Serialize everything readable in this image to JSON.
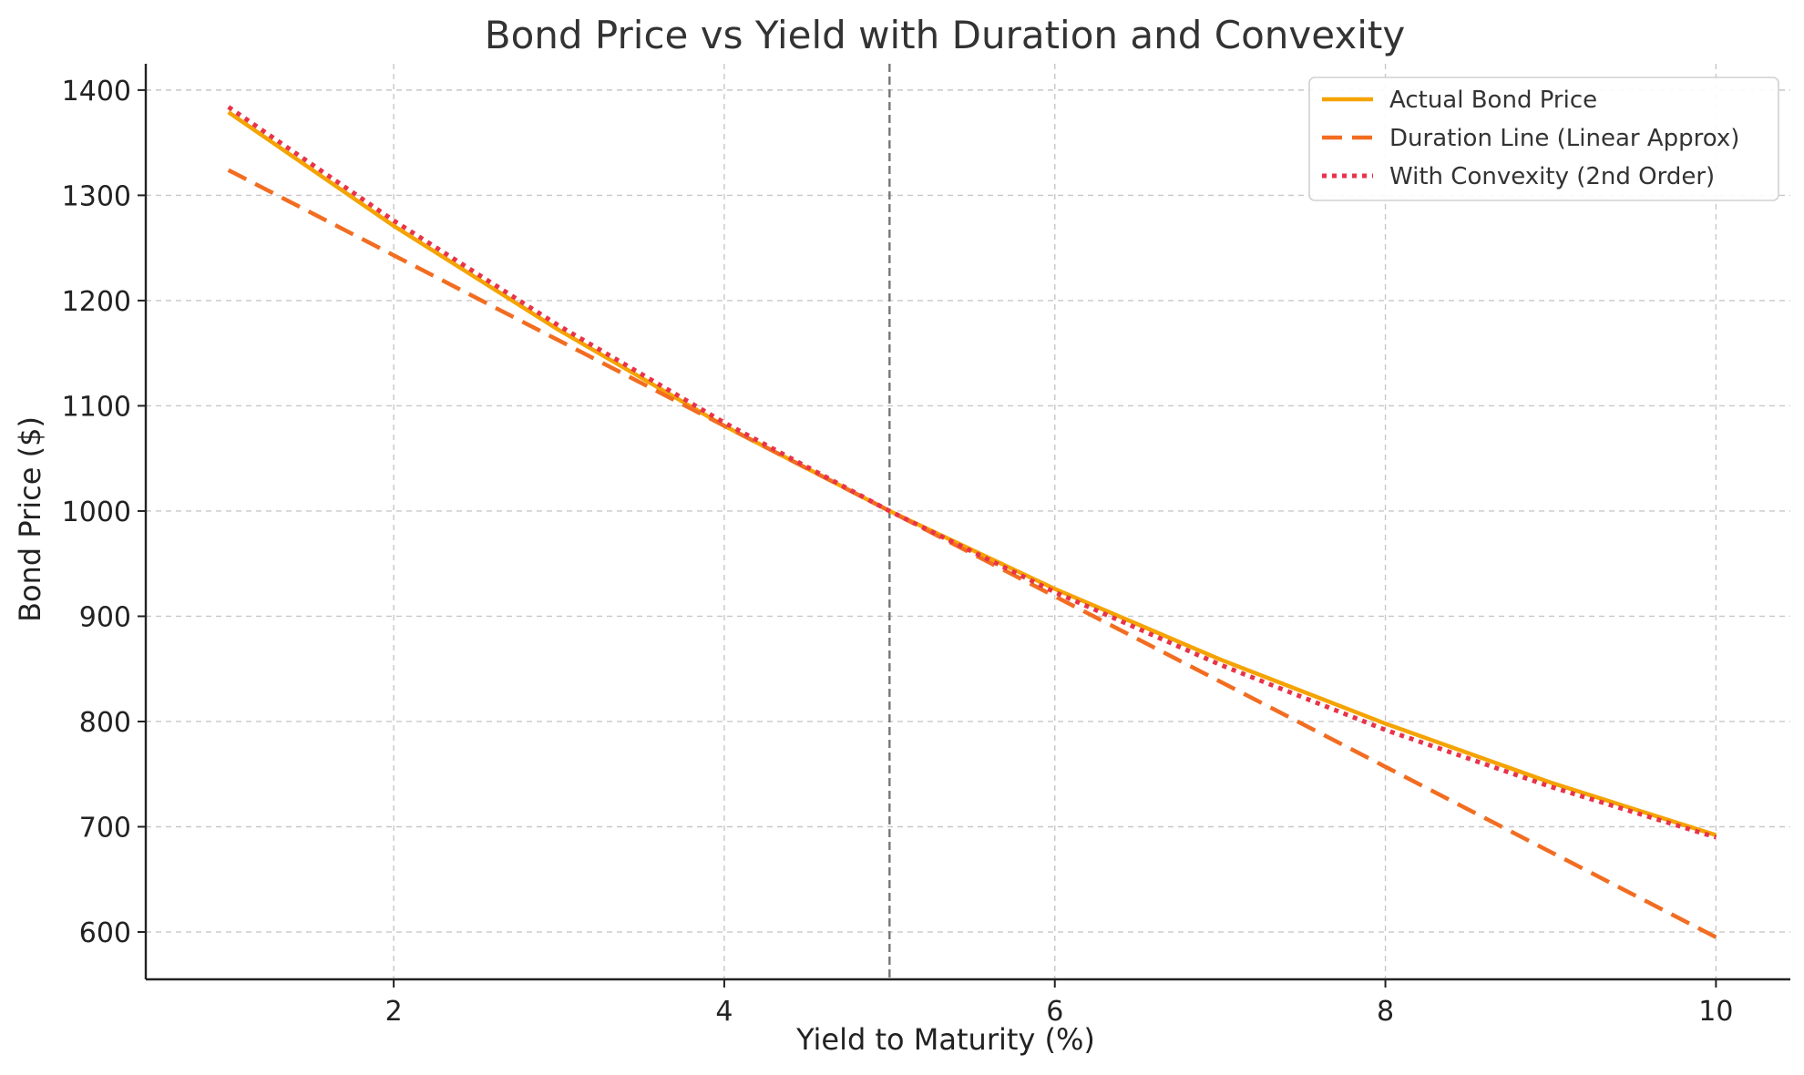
{
  "chart_data": {
    "type": "line",
    "title": "Bond Price vs Yield with Duration and Convexity",
    "xlabel": "Yield to Maturity (%)",
    "ylabel": "Bond Price ($)",
    "xlim": [
      0.5,
      10.45
    ],
    "ylim": [
      555,
      1425
    ],
    "xticks": [
      2,
      4,
      6,
      8,
      10
    ],
    "yticks": [
      600,
      700,
      800,
      900,
      1000,
      1100,
      1200,
      1300,
      1400
    ],
    "grid": true,
    "legend_position": "top-right",
    "reference_line": {
      "x": 5,
      "style": "dashed",
      "color": "#777777"
    },
    "x": [
      1,
      2,
      3,
      4,
      5,
      6,
      7,
      8,
      9,
      10
    ],
    "series": [
      {
        "name": "Actual Bond Price",
        "style": "solid",
        "color": "#f5a300",
        "values": [
          1379,
          1271,
          1172,
          1081,
          1000,
          926,
          859,
          798,
          742,
          692
        ]
      },
      {
        "name": "Duration Line (Linear Approx)",
        "style": "dashed",
        "color": "#f26d21",
        "values": [
          1324,
          1243,
          1162,
          1081,
          1000,
          919,
          838,
          757,
          676,
          595
        ]
      },
      {
        "name": "With Convexity (2nd Order)",
        "style": "dotted",
        "color": "#e8334a",
        "values": [
          1384,
          1276,
          1176,
          1084,
          1000,
          923,
          854,
          792,
          738,
          690
        ]
      }
    ]
  }
}
